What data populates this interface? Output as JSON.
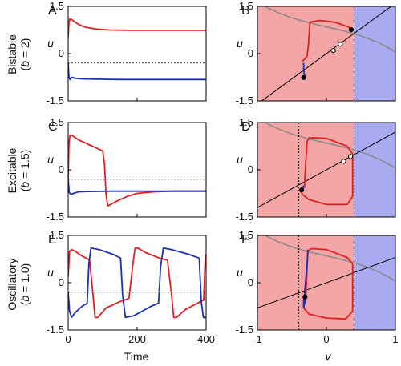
{
  "colors": {
    "red": "#e02020",
    "blue": "#1f2fb5",
    "region_left": "#f4a6a6",
    "region_right": "#aaaaf0",
    "nullcline": "#888888",
    "line": "#000000"
  },
  "rows": [
    {
      "label": "Bistable",
      "param": "b = 2",
      "param_var": "b",
      "param_rest": " = 2)"
    },
    {
      "label": "Excitable",
      "param": "b = 1.5",
      "param_var": "b",
      "param_rest": " = 1.5)"
    },
    {
      "label": "Oscillatory",
      "param": "b = 1.0",
      "param_var": "b",
      "param_rest": " = 1.0)"
    }
  ],
  "axis_text": {
    "time_label": "Time",
    "u_label": "u",
    "v_label": "v",
    "left_u_ticks": [
      "1.5",
      "0",
      "-1.5"
    ],
    "right_u_ticks": [
      "1.5",
      "0",
      "-1.5"
    ],
    "time_ticks": [
      "0",
      "200",
      "400"
    ],
    "v_ticks": [
      "-1",
      "0",
      "1"
    ]
  },
  "chart_data": [
    {
      "panel": "A",
      "type": "line",
      "xlabel": "",
      "ylabel": "u",
      "xlim": [
        0,
        400
      ],
      "ylim": [
        -1.5,
        1.5
      ],
      "hline": {
        "y": -0.3,
        "style": "dotted"
      },
      "series": [
        {
          "color": "red",
          "x": [
            0,
            2,
            5,
            10,
            20,
            30,
            50,
            80,
            120,
            180,
            260,
            400
          ],
          "y": [
            0.5,
            1.0,
            1.1,
            1.08,
            1.0,
            0.93,
            0.84,
            0.78,
            0.75,
            0.74,
            0.74,
            0.74
          ]
        },
        {
          "color": "blue",
          "x": [
            0,
            2,
            5,
            10,
            20,
            40,
            80,
            150,
            250,
            400
          ],
          "y": [
            -0.3,
            -0.72,
            -0.82,
            -0.75,
            -0.78,
            -0.8,
            -0.81,
            -0.82,
            -0.82,
            -0.82
          ]
        }
      ]
    },
    {
      "panel": "B",
      "type": "line",
      "xlabel": "",
      "ylabel": "u",
      "xlim": [
        -1,
        1
      ],
      "ylim": [
        -1.5,
        1.5
      ],
      "threshold_v": 0.4,
      "nullcline_slope": 2,
      "series": [
        {
          "color": "red",
          "x": [
            -0.35,
            -0.28,
            -0.26,
            -0.24,
            -0.1,
            0.05,
            0.15,
            0.25,
            0.32,
            0.36,
            0.37
          ],
          "y": [
            -0.25,
            -0.08,
            0.3,
            1.0,
            1.05,
            1.02,
            0.98,
            0.9,
            0.85,
            0.78,
            0.76
          ]
        },
        {
          "color": "blue",
          "x": [
            -0.33,
            -0.33,
            -0.32,
            -0.31,
            -0.31
          ],
          "y": [
            -0.3,
            -0.5,
            -0.65,
            -0.74,
            -0.76
          ]
        }
      ],
      "fixed_points": [
        {
          "v": -0.33,
          "u": -0.76,
          "filled": true
        },
        {
          "v": 0.1,
          "u": 0.1,
          "filled": false
        },
        {
          "v": 0.2,
          "u": 0.3,
          "filled": false
        },
        {
          "v": 0.36,
          "u": 0.76,
          "filled": true
        }
      ]
    },
    {
      "panel": "C",
      "type": "line",
      "xlabel": "",
      "ylabel": "u",
      "xlim": [
        0,
        400
      ],
      "ylim": [
        -1.5,
        1.5
      ],
      "hline": {
        "y": -0.3,
        "style": "dotted"
      },
      "series": [
        {
          "color": "red",
          "x": [
            0,
            2,
            5,
            10,
            30,
            60,
            90,
            100,
            105,
            110,
            115,
            140,
            170,
            200,
            250,
            300,
            400
          ],
          "y": [
            -0.3,
            0.8,
            1.1,
            1.1,
            0.95,
            0.8,
            0.65,
            0.6,
            0.2,
            -0.8,
            -1.15,
            -1.0,
            -0.85,
            -0.75,
            -0.7,
            -0.68,
            -0.68
          ]
        },
        {
          "color": "blue",
          "x": [
            0,
            3,
            8,
            15,
            30,
            60,
            120,
            200,
            300,
            400
          ],
          "y": [
            -0.3,
            -0.72,
            -0.78,
            -0.75,
            -0.7,
            -0.69,
            -0.68,
            -0.68,
            -0.68,
            -0.68
          ]
        }
      ]
    },
    {
      "panel": "D",
      "type": "line",
      "xlabel": "",
      "ylabel": "u",
      "xlim": [
        -1,
        1
      ],
      "ylim": [
        -1.5,
        1.5
      ],
      "threshold_v": 0.4,
      "threshold_left_v": -0.4,
      "nullcline_slope": 1.5,
      "series": [
        {
          "color": "red",
          "x": [
            -0.32,
            -0.3,
            -0.28,
            -0.25,
            0.0,
            0.3,
            0.38,
            0.38,
            0.38,
            0.3,
            0.0,
            -0.25,
            -0.35,
            -0.38
          ],
          "y": [
            -0.58,
            0.2,
            0.9,
            1.02,
            1.0,
            0.75,
            0.5,
            -0.2,
            -0.85,
            -1.1,
            -1.1,
            -0.95,
            -0.78,
            -0.62
          ]
        },
        {
          "color": "blue",
          "x": [
            -0.33,
            -0.34,
            -0.36,
            -0.36
          ],
          "y": [
            -0.5,
            -0.58,
            -0.63,
            -0.64
          ]
        }
      ],
      "fixed_points": [
        {
          "v": -0.36,
          "u": -0.64,
          "filled": true
        },
        {
          "v": 0.25,
          "u": 0.27,
          "filled": false
        },
        {
          "v": 0.35,
          "u": 0.42,
          "filled": false
        }
      ]
    },
    {
      "panel": "E",
      "type": "line",
      "xlabel": "Time",
      "ylabel": "u",
      "xlim": [
        0,
        400
      ],
      "ylim": [
        -1.5,
        1.5
      ],
      "hline": {
        "y": -0.3,
        "style": "dotted"
      },
      "series": [
        {
          "color": "red",
          "x": [
            0,
            4,
            10,
            20,
            40,
            62,
            72,
            78,
            86,
            110,
            150,
            176,
            188,
            194,
            202,
            225,
            265,
            288,
            300,
            306,
            314,
            340,
            375,
            393,
            398
          ],
          "y": [
            0.2,
            1.0,
            1.05,
            1.0,
            0.85,
            0.72,
            -0.4,
            -1.1,
            -1.1,
            -0.8,
            -0.6,
            -0.5,
            0.6,
            1.1,
            1.1,
            0.95,
            0.78,
            0.72,
            -0.4,
            -1.1,
            -1.1,
            -0.85,
            -0.65,
            -0.55,
            0.9
          ]
        },
        {
          "color": "blue",
          "x": [
            0,
            4,
            10,
            20,
            40,
            55,
            60,
            66,
            90,
            130,
            152,
            158,
            166,
            190,
            240,
            262,
            268,
            276,
            300,
            350,
            380,
            386,
            392,
            400
          ],
          "y": [
            -0.3,
            -0.9,
            -1.1,
            -0.95,
            -0.75,
            -0.65,
            0.6,
            1.1,
            1.05,
            0.9,
            0.78,
            -0.4,
            -1.1,
            -1.05,
            -0.75,
            -0.65,
            0.5,
            1.1,
            1.05,
            0.9,
            0.78,
            -0.6,
            -1.1,
            -1.1
          ]
        }
      ]
    },
    {
      "panel": "F",
      "type": "line",
      "xlabel": "v",
      "ylabel": "u",
      "xlim": [
        -1,
        1
      ],
      "ylim": [
        -1.5,
        1.5
      ],
      "threshold_v": 0.4,
      "threshold_left_v": -0.4,
      "nullcline_slope": 1.0,
      "series": [
        {
          "color": "red",
          "x": [
            -0.3,
            -0.28,
            -0.27,
            -0.22,
            0.0,
            0.3,
            0.38,
            0.38,
            0.38,
            0.28,
            0.0,
            -0.25,
            -0.33,
            -0.33,
            -0.3
          ],
          "y": [
            -0.45,
            0.4,
            1.0,
            1.08,
            1.05,
            0.8,
            0.6,
            -0.3,
            -0.9,
            -1.15,
            -1.12,
            -1.0,
            -0.8,
            -0.5,
            -0.45
          ]
        },
        {
          "color": "blue",
          "x": [
            -0.29,
            -0.31,
            -0.33,
            -0.33,
            -0.3,
            -0.27,
            -0.27
          ],
          "y": [
            -0.45,
            -0.6,
            -0.8,
            -0.7,
            0.1,
            0.9,
            1.05
          ]
        }
      ],
      "fixed_points": [
        {
          "v": -0.31,
          "u": -0.45,
          "filled": true
        }
      ]
    }
  ]
}
